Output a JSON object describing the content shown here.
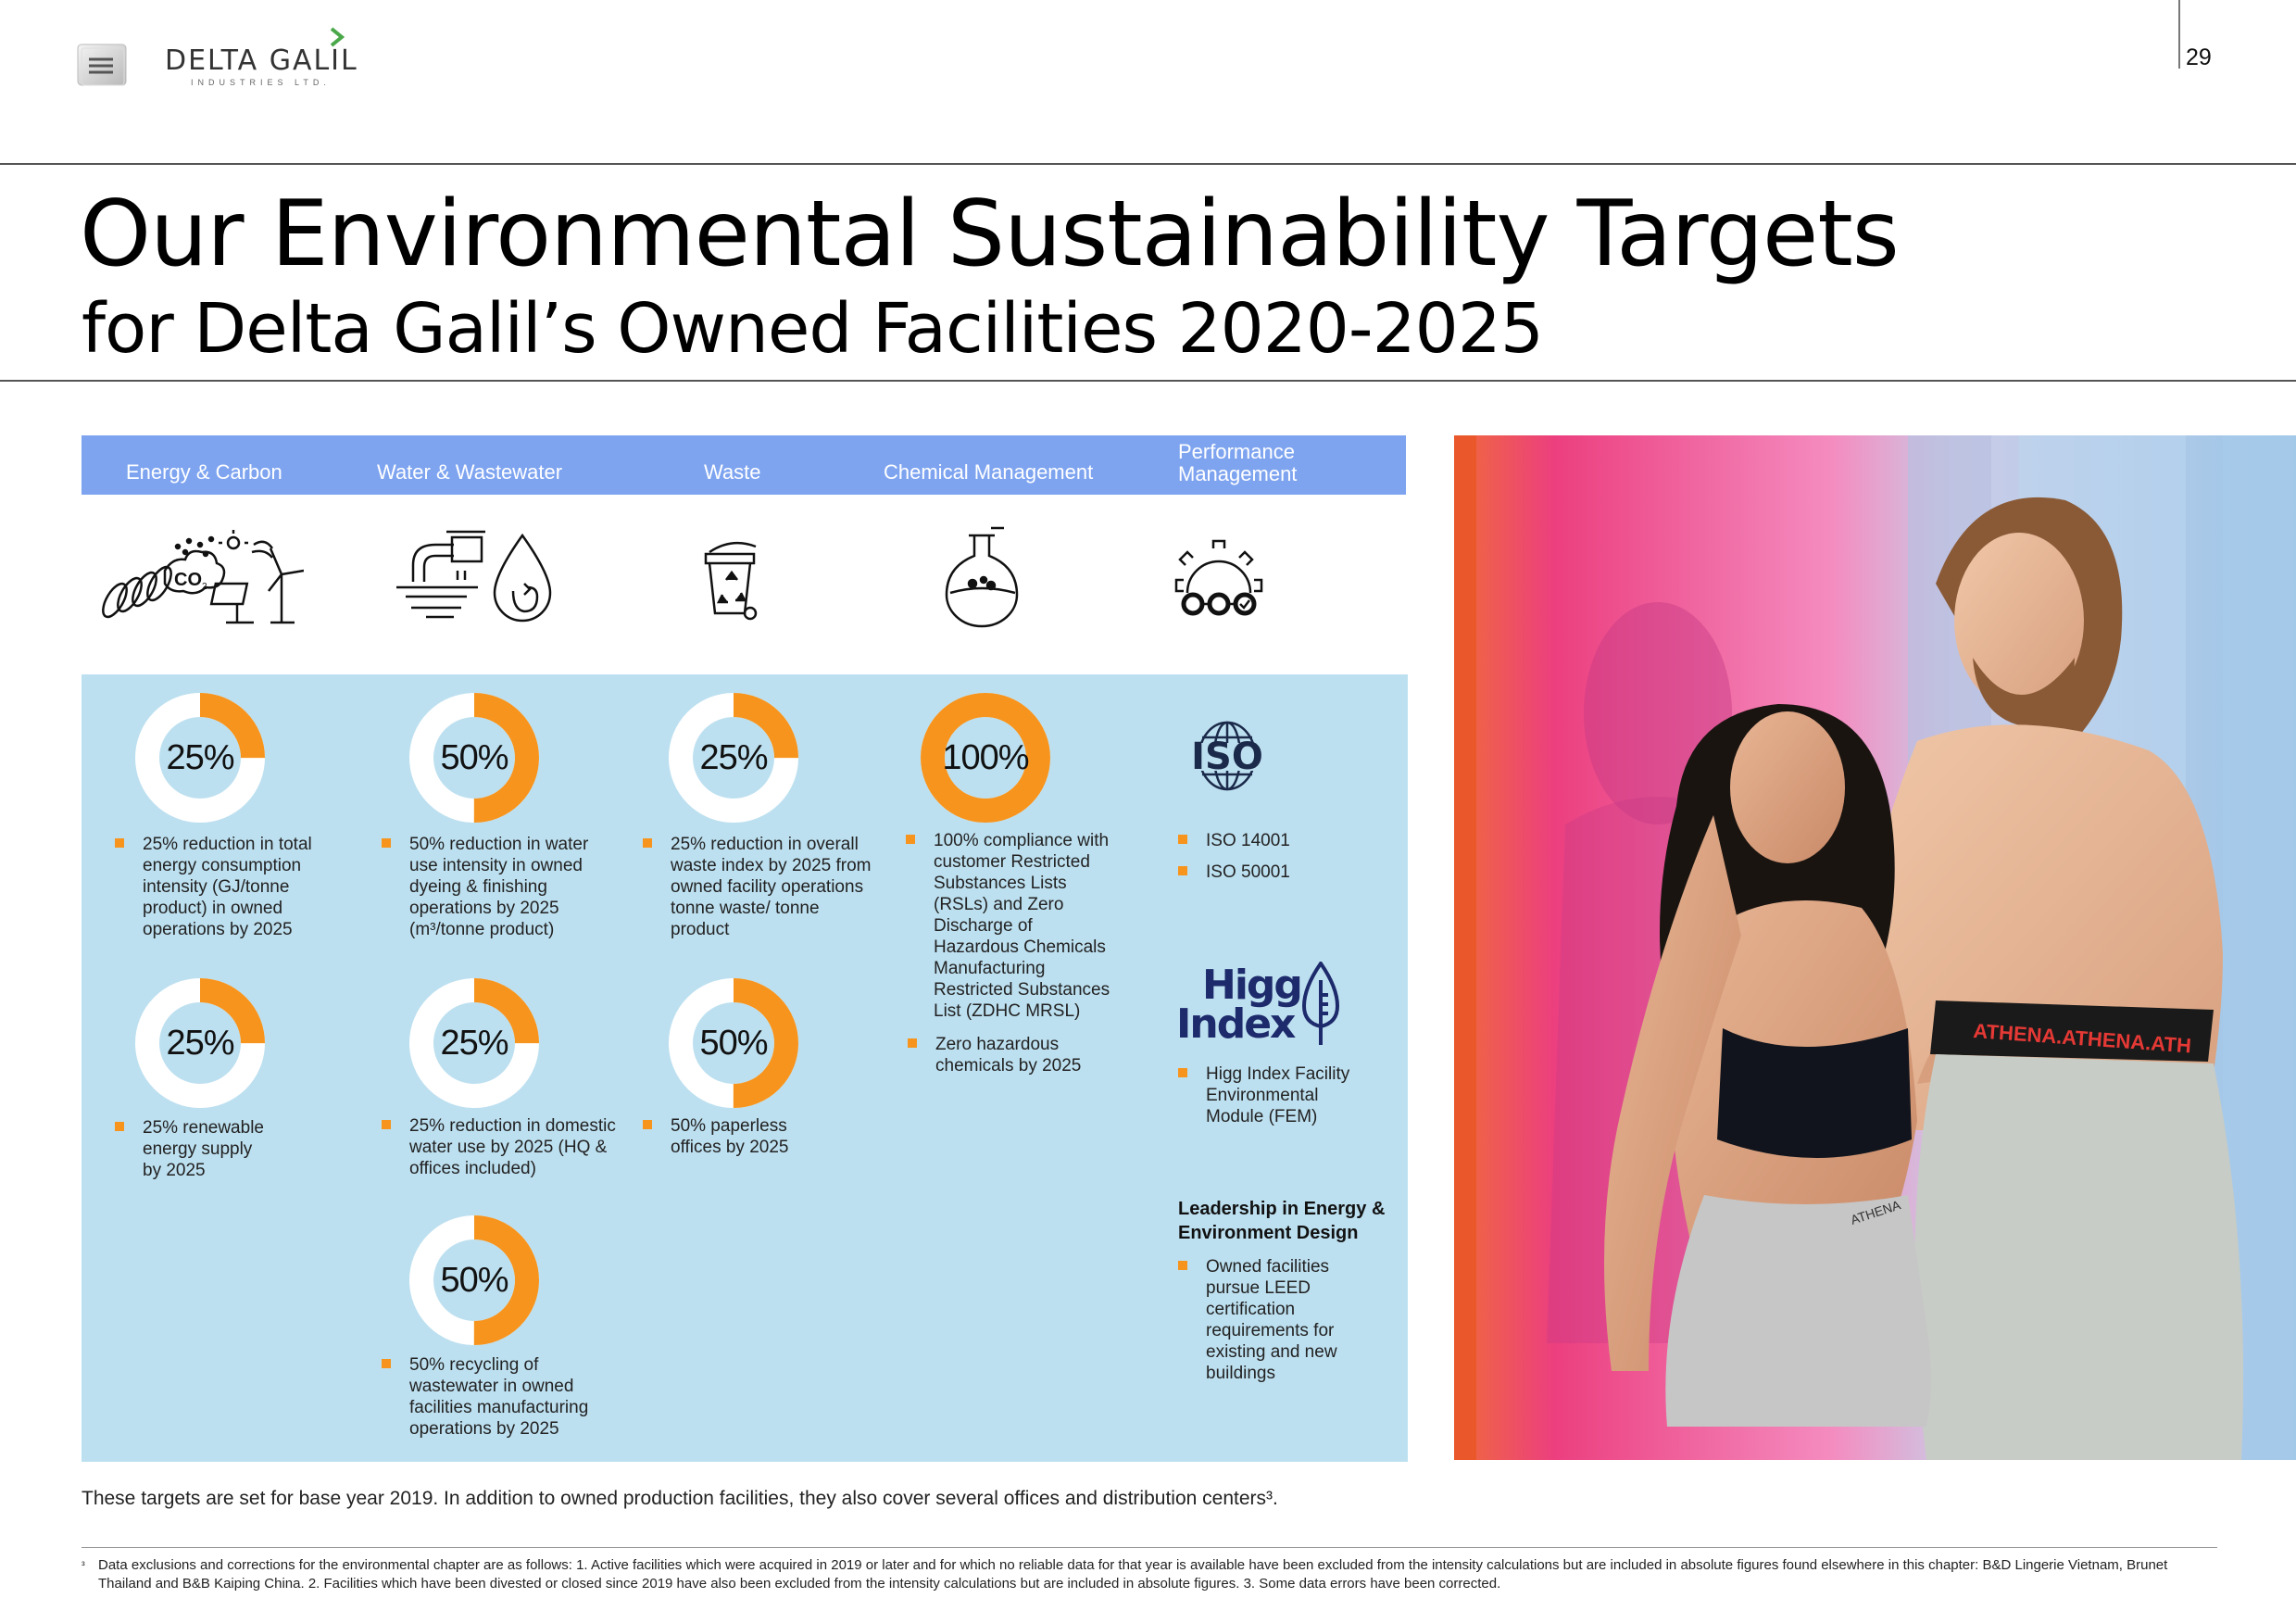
{
  "header": {
    "brand_name": "DELTA GALIL",
    "brand_sub": "INDUSTRIES LTD.",
    "page_number": "29"
  },
  "title": "Our Environmental Sustainability Targets",
  "subtitle": "for Delta Galil’s Owned Facilities 2020-2025",
  "categories": [
    {
      "label": "Energy & Carbon",
      "icon": "energy-carbon-icon"
    },
    {
      "label": "Water & Wastewater",
      "icon": "water-tap-drop-icon"
    },
    {
      "label": "Waste",
      "icon": "recycle-bin-icon"
    },
    {
      "label": "Chemical Management",
      "icon": "flask-icon"
    },
    {
      "label": "Performance Management",
      "icon": "gear-icon"
    }
  ],
  "targets": {
    "energy": [
      {
        "percent": 25,
        "label": "25%",
        "text": "25% reduction in total energy consumption intensity (GJ/tonne product) in owned operations by 2025"
      },
      {
        "percent": 25,
        "label": "25%",
        "text": "25% renewable energy supply by 2025"
      }
    ],
    "water": [
      {
        "percent": 50,
        "label": "50%",
        "text": "50% reduction in water use intensity in owned dyeing & finishing operations by 2025 (m³/tonne product)"
      },
      {
        "percent": 25,
        "label": "25%",
        "text": "25% reduction in domestic water use by 2025 (HQ & offices included)"
      },
      {
        "percent": 50,
        "label": "50%",
        "text": "50% recycling of wastewater in owned facilities manufacturing operations by 2025"
      }
    ],
    "waste": [
      {
        "percent": 25,
        "label": "25%",
        "text": "25% reduction in overall waste index by 2025 from owned facility operations tonne waste/ tonne product"
      },
      {
        "percent": 50,
        "label": "50%",
        "text": "50% paperless offices by 2025"
      }
    ],
    "chemical": [
      {
        "percent": 100,
        "label": "100%",
        "text": "100% compliance with customer Restricted Substances Lists (RSLs) and Zero Discharge of Hazardous Chemicals Manufacturing Restricted Substances List (ZDHC MRSL)"
      },
      {
        "text": "Zero hazardous chemicals by 2025"
      }
    ],
    "performance": {
      "iso_logo": "ISO",
      "iso_items": [
        "ISO 14001",
        "ISO 50001"
      ],
      "higg_logo_line1": "Higg",
      "higg_logo_line2": "Index",
      "higg_item": "Higg Index Facility Environmental Module (FEM)",
      "leed_title": "Leadership in Energy & Environment Design",
      "leed_item": "Owned facilities pursue LEED certification requirements for existing and new buildings"
    }
  },
  "note": "These targets are set for base year 2019. In addition to owned production facilities, they also cover several offices and distribution centers³.",
  "footnote": {
    "mark": "³",
    "text": "Data exclusions and corrections for the environmental chapter are as follows: 1. Active facilities which were acquired in 2019 or later and for which no reliable data for that year is available have been excluded from the intensity calculations but are included in absolute figures found elsewhere in this chapter: B&D Lingerie Vietnam, Brunet Thailand and B&B Kaiping China. 2. Facilities which have been divested or closed since 2019 have also been excluded from the intensity calculations but are included in absolute figures. 3. Some data errors have been corrected."
  },
  "colors": {
    "band": "#7ea4f0",
    "panel": "#bde0f0",
    "accent": "#f7941d",
    "donut_track": "#ffffff",
    "iso_navy": "#1b2a4a",
    "higg_navy": "#1d2a6b"
  },
  "photo": {
    "icon": "models-photo",
    "waistband_text": "ATHENA.ATHENA.ATH",
    "shorts_tag": "ATHENA"
  }
}
